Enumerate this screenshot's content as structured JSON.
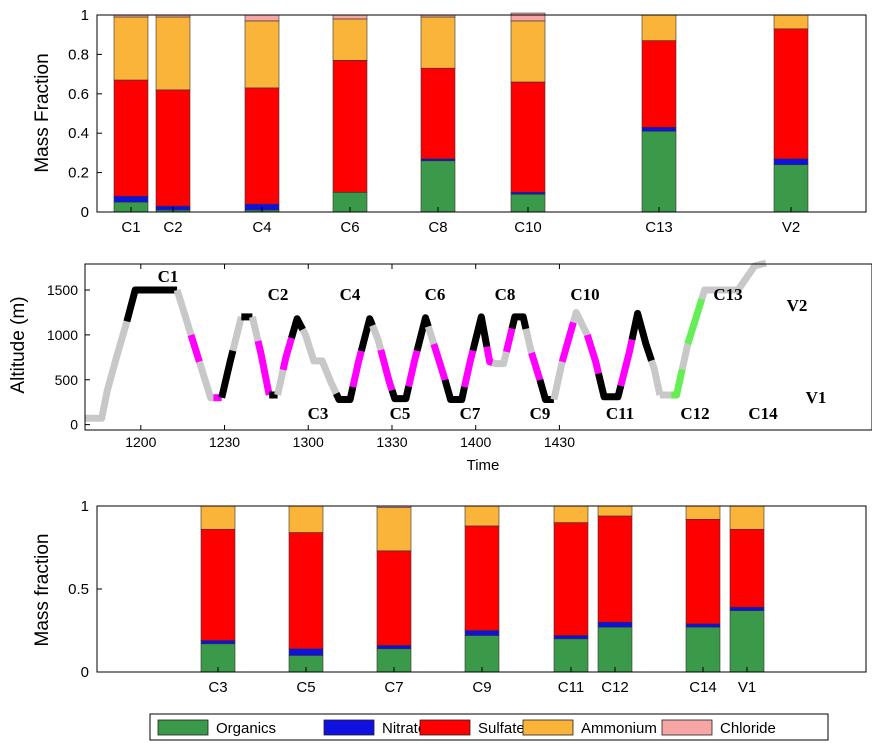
{
  "colors": {
    "Organics": "#3a9a4a",
    "Nitrate": "#1010e0",
    "Sulfate": "#ff0000",
    "Ammonium": "#fbb43a",
    "Chloride": "#f7a6a6",
    "flight_grey": "#c8c8c8",
    "flight_black": "#000000",
    "flight_magenta": "#ff00ff",
    "flight_green": "#66ee55"
  },
  "legend": [
    "Organics",
    "Nitrate",
    "Sulfate",
    "Ammonium",
    "Chloride"
  ],
  "chart_data": [
    {
      "type": "bar",
      "stacked": true,
      "ylabel": "Mass Fraction",
      "ylim": [
        0,
        1
      ],
      "yticks": [
        "0",
        "0.2",
        "0.4",
        "0.6",
        "0.8",
        "1"
      ],
      "categories": [
        "C1",
        "C2",
        "C4",
        "C6",
        "C8",
        "C10",
        "C13",
        "V2"
      ],
      "series": [
        {
          "name": "Organics",
          "values": [
            0.05,
            0.01,
            0.01,
            0.1,
            0.26,
            0.09,
            0.41,
            0.24
          ]
        },
        {
          "name": "Nitrate",
          "values": [
            0.03,
            0.02,
            0.03,
            0.0,
            0.01,
            0.01,
            0.02,
            0.03
          ]
        },
        {
          "name": "Sulfate",
          "values": [
            0.59,
            0.59,
            0.59,
            0.67,
            0.46,
            0.56,
            0.44,
            0.66
          ]
        },
        {
          "name": "Ammonium",
          "values": [
            0.32,
            0.37,
            0.34,
            0.21,
            0.26,
            0.31,
            0.13,
            0.07
          ]
        },
        {
          "name": "Chloride",
          "values": [
            0.01,
            0.01,
            0.03,
            0.02,
            0.01,
            0.04,
            0.0,
            0.0
          ]
        }
      ]
    },
    {
      "type": "line",
      "xlabel": "Time",
      "ylabel": "Altitude (m)",
      "xticks": [
        "1200",
        "1230",
        "1300",
        "1330",
        "1400",
        "1430"
      ],
      "yticks": [
        "0",
        "500",
        "1000",
        "1500"
      ],
      "labels": [
        "C1",
        "C2",
        "C4",
        "C6",
        "C8",
        "C10",
        "C13",
        "V2",
        "C3",
        "C5",
        "C7",
        "C9",
        "C11",
        "C12",
        "C14",
        "V1"
      ]
    },
    {
      "type": "bar",
      "stacked": true,
      "ylabel": "Mass fraction",
      "ylim": [
        0,
        1
      ],
      "yticks": [
        "0",
        "0.5",
        "1"
      ],
      "categories": [
        "C3",
        "C5",
        "C7",
        "C9",
        "C11",
        "C12",
        "C14",
        "V1"
      ],
      "series": [
        {
          "name": "Organics",
          "values": [
            0.17,
            0.1,
            0.14,
            0.22,
            0.2,
            0.27,
            0.27,
            0.37
          ]
        },
        {
          "name": "Nitrate",
          "values": [
            0.02,
            0.04,
            0.02,
            0.03,
            0.02,
            0.03,
            0.02,
            0.02
          ]
        },
        {
          "name": "Sulfate",
          "values": [
            0.67,
            0.7,
            0.57,
            0.63,
            0.68,
            0.64,
            0.63,
            0.47
          ]
        },
        {
          "name": "Ammonium",
          "values": [
            0.14,
            0.16,
            0.26,
            0.12,
            0.1,
            0.06,
            0.08,
            0.14
          ]
        },
        {
          "name": "Chloride",
          "values": [
            0.0,
            0.0,
            0.01,
            0.0,
            0.0,
            0.0,
            0.0,
            0.0
          ]
        }
      ]
    }
  ]
}
